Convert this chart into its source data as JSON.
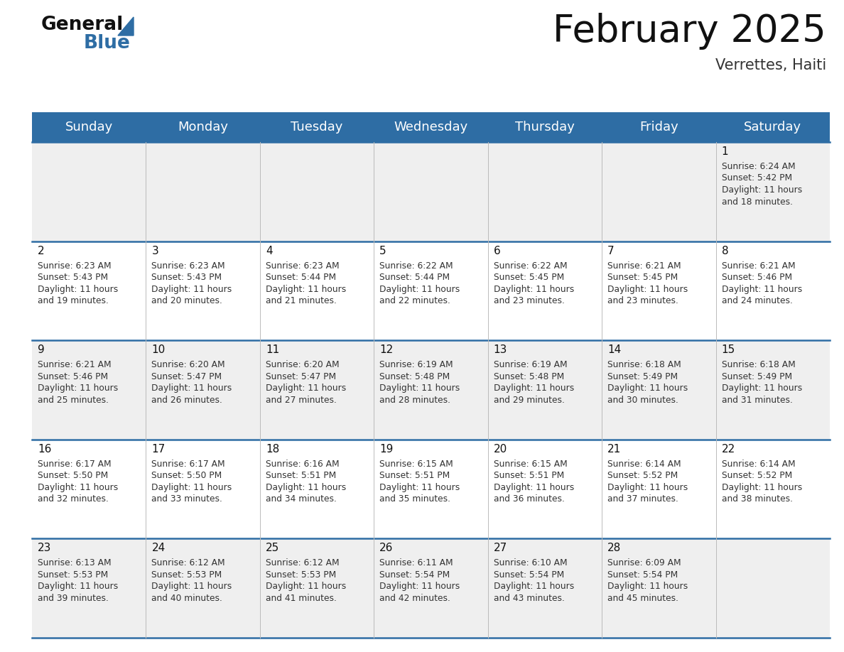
{
  "title": "February 2025",
  "subtitle": "Verrettes, Haiti",
  "header_color": "#2E6DA4",
  "header_text_color": "#FFFFFF",
  "background_color": "#FFFFFF",
  "cell_bg_row0": "#EFEFEF",
  "cell_bg_row1": "#FFFFFF",
  "cell_bg_row2": "#EFEFEF",
  "cell_bg_row3": "#FFFFFF",
  "cell_bg_row4": "#EFEFEF",
  "day_headers": [
    "Sunday",
    "Monday",
    "Tuesday",
    "Wednesday",
    "Thursday",
    "Friday",
    "Saturday"
  ],
  "title_fontsize": 38,
  "subtitle_fontsize": 15,
  "header_fontsize": 13,
  "day_num_fontsize": 11,
  "info_fontsize": 8.8,
  "calendar_data": [
    [
      null,
      null,
      null,
      null,
      null,
      null,
      {
        "day": 1,
        "sunrise": "6:24 AM",
        "sunset": "5:42 PM",
        "daylight": "11 hours and 18 minutes."
      }
    ],
    [
      {
        "day": 2,
        "sunrise": "6:23 AM",
        "sunset": "5:43 PM",
        "daylight": "11 hours and 19 minutes."
      },
      {
        "day": 3,
        "sunrise": "6:23 AM",
        "sunset": "5:43 PM",
        "daylight": "11 hours and 20 minutes."
      },
      {
        "day": 4,
        "sunrise": "6:23 AM",
        "sunset": "5:44 PM",
        "daylight": "11 hours and 21 minutes."
      },
      {
        "day": 5,
        "sunrise": "6:22 AM",
        "sunset": "5:44 PM",
        "daylight": "11 hours and 22 minutes."
      },
      {
        "day": 6,
        "sunrise": "6:22 AM",
        "sunset": "5:45 PM",
        "daylight": "11 hours and 23 minutes."
      },
      {
        "day": 7,
        "sunrise": "6:21 AM",
        "sunset": "5:45 PM",
        "daylight": "11 hours and 23 minutes."
      },
      {
        "day": 8,
        "sunrise": "6:21 AM",
        "sunset": "5:46 PM",
        "daylight": "11 hours and 24 minutes."
      }
    ],
    [
      {
        "day": 9,
        "sunrise": "6:21 AM",
        "sunset": "5:46 PM",
        "daylight": "11 hours and 25 minutes."
      },
      {
        "day": 10,
        "sunrise": "6:20 AM",
        "sunset": "5:47 PM",
        "daylight": "11 hours and 26 minutes."
      },
      {
        "day": 11,
        "sunrise": "6:20 AM",
        "sunset": "5:47 PM",
        "daylight": "11 hours and 27 minutes."
      },
      {
        "day": 12,
        "sunrise": "6:19 AM",
        "sunset": "5:48 PM",
        "daylight": "11 hours and 28 minutes."
      },
      {
        "day": 13,
        "sunrise": "6:19 AM",
        "sunset": "5:48 PM",
        "daylight": "11 hours and 29 minutes."
      },
      {
        "day": 14,
        "sunrise": "6:18 AM",
        "sunset": "5:49 PM",
        "daylight": "11 hours and 30 minutes."
      },
      {
        "day": 15,
        "sunrise": "6:18 AM",
        "sunset": "5:49 PM",
        "daylight": "11 hours and 31 minutes."
      }
    ],
    [
      {
        "day": 16,
        "sunrise": "6:17 AM",
        "sunset": "5:50 PM",
        "daylight": "11 hours and 32 minutes."
      },
      {
        "day": 17,
        "sunrise": "6:17 AM",
        "sunset": "5:50 PM",
        "daylight": "11 hours and 33 minutes."
      },
      {
        "day": 18,
        "sunrise": "6:16 AM",
        "sunset": "5:51 PM",
        "daylight": "11 hours and 34 minutes."
      },
      {
        "day": 19,
        "sunrise": "6:15 AM",
        "sunset": "5:51 PM",
        "daylight": "11 hours and 35 minutes."
      },
      {
        "day": 20,
        "sunrise": "6:15 AM",
        "sunset": "5:51 PM",
        "daylight": "11 hours and 36 minutes."
      },
      {
        "day": 21,
        "sunrise": "6:14 AM",
        "sunset": "5:52 PM",
        "daylight": "11 hours and 37 minutes."
      },
      {
        "day": 22,
        "sunrise": "6:14 AM",
        "sunset": "5:52 PM",
        "daylight": "11 hours and 38 minutes."
      }
    ],
    [
      {
        "day": 23,
        "sunrise": "6:13 AM",
        "sunset": "5:53 PM",
        "daylight": "11 hours and 39 minutes."
      },
      {
        "day": 24,
        "sunrise": "6:12 AM",
        "sunset": "5:53 PM",
        "daylight": "11 hours and 40 minutes."
      },
      {
        "day": 25,
        "sunrise": "6:12 AM",
        "sunset": "5:53 PM",
        "daylight": "11 hours and 41 minutes."
      },
      {
        "day": 26,
        "sunrise": "6:11 AM",
        "sunset": "5:54 PM",
        "daylight": "11 hours and 42 minutes."
      },
      {
        "day": 27,
        "sunrise": "6:10 AM",
        "sunset": "5:54 PM",
        "daylight": "11 hours and 43 minutes."
      },
      {
        "day": 28,
        "sunrise": "6:09 AM",
        "sunset": "5:54 PM",
        "daylight": "11 hours and 45 minutes."
      },
      null
    ]
  ]
}
